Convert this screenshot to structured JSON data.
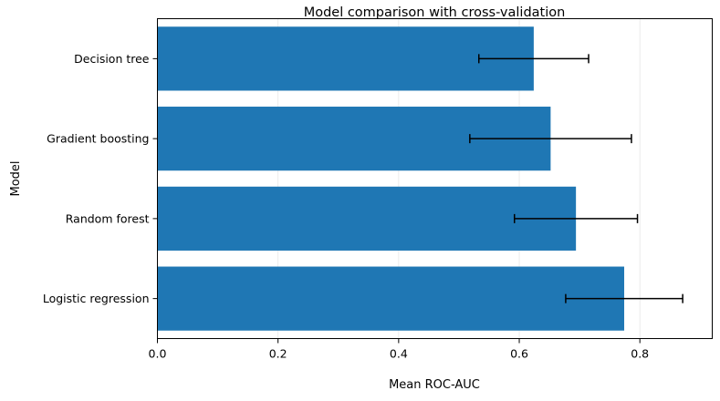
{
  "chart_data": {
    "type": "bar",
    "orientation": "horizontal",
    "title": "Model comparison with cross-validation",
    "xlabel": "Mean ROC-AUC",
    "ylabel": "Model",
    "categories": [
      "Logistic regression",
      "Random forest",
      "Gradient boosting",
      "Decision tree"
    ],
    "values": [
      0.774,
      0.694,
      0.652,
      0.624
    ],
    "errors": [
      0.097,
      0.102,
      0.134,
      0.091
    ],
    "xlim": [
      0,
      0.92
    ],
    "xticks": [
      0.0,
      0.2,
      0.4,
      0.6,
      0.8
    ],
    "xtick_labels": [
      "0.0",
      "0.2",
      "0.4",
      "0.6",
      "0.8"
    ],
    "grid": "x",
    "bar_color": "#1f77b4",
    "error_color": "#000000"
  }
}
